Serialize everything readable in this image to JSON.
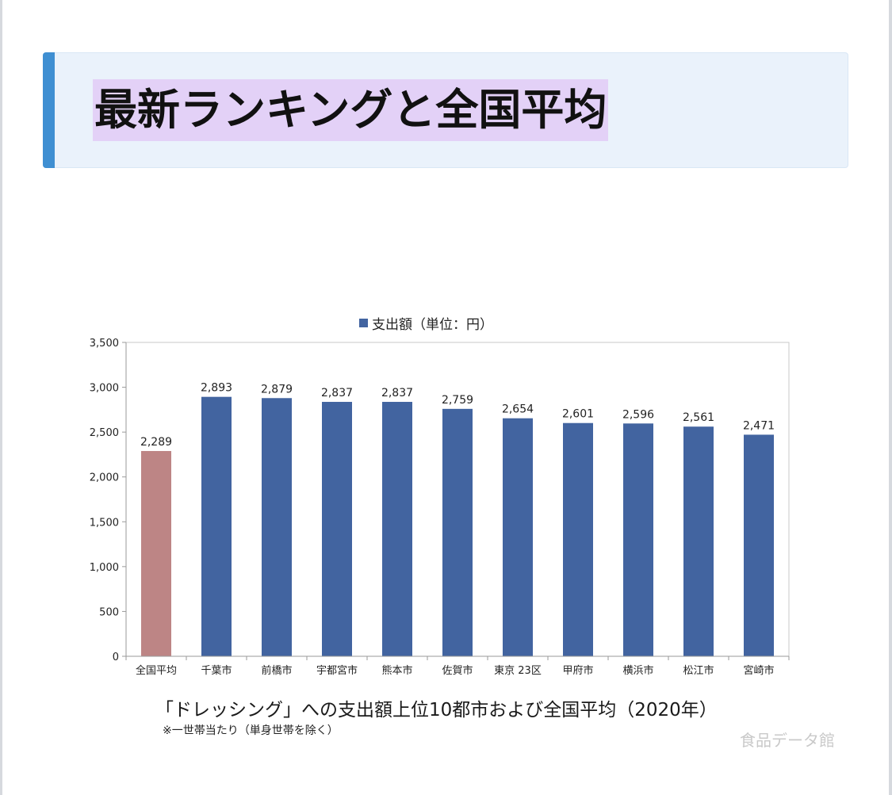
{
  "heading": {
    "title": "最新ランキングと全国平均"
  },
  "chart_data": {
    "type": "bar",
    "categories": [
      "全国平均",
      "千葉市",
      "前橋市",
      "宇都宮市",
      "熊本市",
      "佐賀市",
      "東京 23区",
      "甲府市",
      "横浜市",
      "松江市",
      "宮崎市"
    ],
    "series": [
      {
        "name": "支出額（単位：円）",
        "values": [
          2289,
          2893,
          2879,
          2837,
          2837,
          2759,
          2654,
          2601,
          2596,
          2561,
          2471
        ]
      }
    ],
    "data_labels": [
      "2,289",
      "2,893",
      "2,879",
      "2,837",
      "2,837",
      "2,759",
      "2,654",
      "2,601",
      "2,596",
      "2,561",
      "2,471"
    ],
    "yticks": [
      0,
      500,
      1000,
      1500,
      2000,
      2500,
      3000,
      3500
    ],
    "ytick_labels": [
      "0",
      "500",
      "1,000",
      "1,500",
      "2,000",
      "2,500",
      "3,000",
      "3,500"
    ],
    "ylim": [
      0,
      3500
    ],
    "legend_position": "top",
    "grid": false,
    "colors": {
      "series": "#4264a0",
      "average": "#bd8585"
    },
    "highlighted_category": "全国平均",
    "caption": "「ドレッシング」への支出額上位10都市および全国平均（2020年）",
    "note": "※一世帯当たり（単身世帯を除く）"
  },
  "watermark": "食品データ館"
}
